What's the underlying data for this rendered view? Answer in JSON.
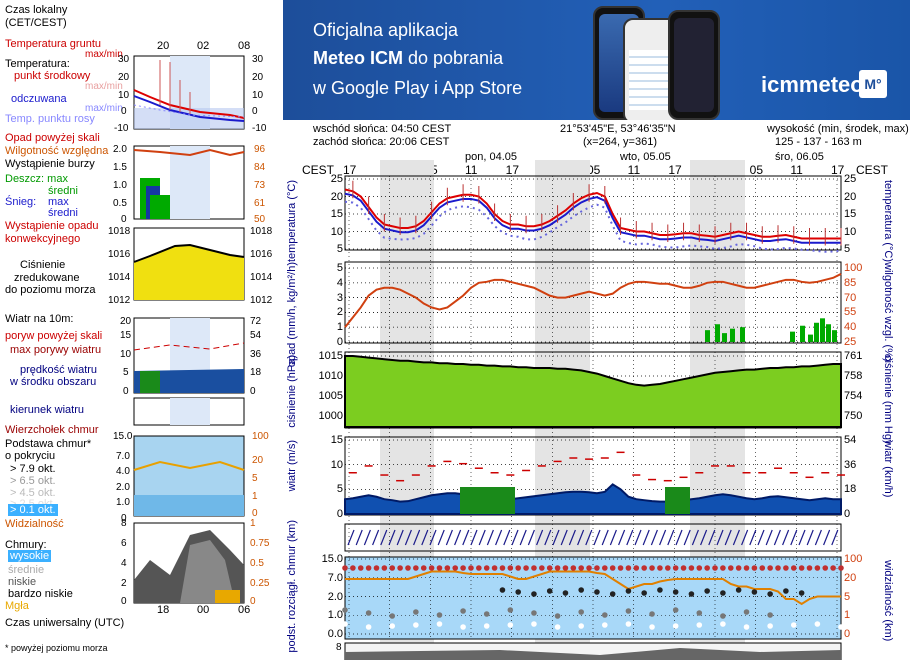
{
  "legend": {
    "czas_lokalny": "Czas lokalny",
    "cet": "(CET/CEST)",
    "temp_gruntu": "Temperatura gruntu",
    "max_min": "max/min",
    "temperatura": "Temperatura:",
    "punkt_srodkowy": "punkt środkowy",
    "max_min2": "max/min",
    "odczuwana": "odczuwana",
    "max_min3": "max/min",
    "temp_punktu_rosy": "Temp. punktu rosy",
    "opad_powyzej": "Opad powyżej skali",
    "wilgotnosc": "Wilgotność względna",
    "wystapienie_burzy": "Wystąpienie burzy",
    "deszcz_max": "Deszcz: max",
    "sredni": "średni",
    "snieg": "Śnieg:",
    "snieg_max": "max",
    "snieg_sredni": "średni",
    "wystapienie_opadu": "Wystąpienie opadu",
    "konwekcyjnego": "konwekcyjnego",
    "cisnienie": "Ciśnienie",
    "zredukowane": "zredukowane",
    "do_poziomu": "do poziomu morza",
    "wiatr_na": "Wiatr na 10m:",
    "poryw_powyzej": "poryw powyżej skali",
    "max_porywy": "max porywy wiatru",
    "predkosc": "prędkość wiatru",
    "w_srodku": "w środku obszaru",
    "kierunek": "kierunek wiatru",
    "wierzcholek": "Wierzchołek chmur",
    "podstawa": "Podstawa chmur*",
    "o_pokryciu": "o pokryciu",
    "okt79": "> 7.9 okt.",
    "okt65": "> 6.5 okt.",
    "okt45": "> 4.5 okt.",
    "okt25": "> 2.5 okt.",
    "okt01": "> 0.1 okt.",
    "widzialnosc": "Widzialność",
    "chmury": "Chmury:",
    "wysokie": "wysokie",
    "srednie": "średnie",
    "niskie": "niskie",
    "bardzo_niskie": "bardzo niskie",
    "mgla": "Mgła",
    "czas_uniwersalny": "Czas uniwersalny (UTC)",
    "footnote": "* powyżej poziomu morza",
    "top_hours": [
      "20",
      "02",
      "08"
    ],
    "bottom_hours": [
      "18",
      "00",
      "06"
    ]
  },
  "legend_axes": {
    "temp_left": [
      "30",
      "20",
      "10",
      "0",
      "-10"
    ],
    "temp_right": [
      "30",
      "20",
      "10",
      "0",
      "-10"
    ],
    "rain_left": [
      "2.0",
      "1.5",
      "1.0",
      "0.5",
      "0"
    ],
    "rain_right": [
      "96",
      "84",
      "73",
      "61",
      "50"
    ],
    "press_left": [
      "1018",
      "1016",
      "1014",
      "1012"
    ],
    "press_right": [
      "1018",
      "1016",
      "1014",
      "1012"
    ],
    "wind_left": [
      "20",
      "15",
      "10",
      "5",
      "0"
    ],
    "wind_right": [
      "72",
      "54",
      "36",
      "18",
      "0"
    ],
    "cloud_left": [
      "15.0",
      "7.0",
      "4.0",
      "2.0",
      "1.0",
      "0"
    ],
    "cloud_right": [
      "100",
      "20",
      "5",
      "1",
      "0"
    ],
    "clouds_left": [
      "8",
      "6",
      "4",
      "2",
      "0"
    ],
    "clouds_right": [
      "1",
      "0.75",
      "0.5",
      "0.25",
      "0"
    ]
  },
  "banner": {
    "line1": "Oficjalna aplikacja",
    "line2_bold": "Meteo ICM",
    "line2_rest": " do pobrania",
    "line3": "w Google Play i App Store",
    "logo_text": "icmmeteo",
    "logo_box": "M°"
  },
  "header": {
    "sunrise": "wschód słońca: 04:50 CEST",
    "sunset": "zachód słońca: 20:06 CEST",
    "coords": "21°53'45\"E, 53°46'35\"N",
    "grid": "(x=264,  y=361)",
    "height_label": "wysokość (min, środek, max)",
    "height_values": "125 - 137 - 163 m",
    "days": [
      "pon, 04.05",
      "wto, 05.05",
      "śro, 06.05"
    ],
    "hours": [
      "17",
      "23",
      "05",
      "11",
      "17",
      "23",
      "05",
      "11",
      "17",
      "23",
      "05",
      "11",
      "17"
    ],
    "cest_left": "CEST",
    "cest_right": "CEST"
  },
  "main_axes": {
    "temp": {
      "left": [
        "25",
        "20",
        "15",
        "10",
        "5"
      ],
      "right": [
        "25",
        "20",
        "15",
        "10",
        "5"
      ],
      "label_left": "temperatura",
      "unit_left": "(°C)",
      "label_right": "temperatura",
      "unit_right": "(°C)"
    },
    "precip": {
      "left": [
        "5",
        "4",
        "3",
        "2",
        "1",
        "0"
      ],
      "right": [
        "100",
        "85",
        "70",
        "55",
        "40",
        "25"
      ],
      "label_left": "opad",
      "unit_left": "(mm/h, kg/m²/h)",
      "label_right": "wilgotność wzgl.",
      "unit_right": "(%)"
    },
    "press": {
      "left": [
        "1015",
        "1010",
        "1005",
        "1000"
      ],
      "right": [
        "761",
        "758",
        "754",
        "750"
      ],
      "label_left": "ciśnienie",
      "unit_left": "(hPa)",
      "label_right": "ciśnienie",
      "unit_right": "(mm Hg)"
    },
    "wind": {
      "left": [
        "15",
        "10",
        "5",
        "0"
      ],
      "right": [
        "54",
        "36",
        "18",
        "0"
      ],
      "label_left": "wiatr",
      "unit_left": "(m/s)",
      "label_right": "wiatr",
      "unit_right": "(km/h)"
    },
    "cloud": {
      "left": [
        "15.0",
        "7.0",
        "2.0",
        "1.0",
        "0.0"
      ],
      "right": [
        "100",
        "20",
        "5",
        "1",
        "0"
      ],
      "label_left": "podst. rozciągł. chmur",
      "unit_left": "(km)",
      "label_right": "widzialność",
      "unit_right": "(km)"
    },
    "clouds_top": "8"
  },
  "colors": {
    "banner_bg": "#1d4e9a",
    "night": "#e4e4e4",
    "temp_line": "#dd0000",
    "feel_line": "#1a1acc",
    "humidity": "#d04010",
    "precip": "#00aa00",
    "pressure_fill": "#7ccd20",
    "wind_fill": "#1050b0",
    "legend_blue": "#d8e8ff"
  }
}
